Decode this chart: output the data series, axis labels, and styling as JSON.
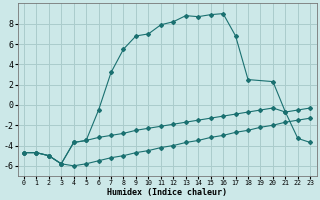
{
  "xlabel": "Humidex (Indice chaleur)",
  "bg_color": "#cce8e8",
  "grid_color": "#aacccc",
  "line_color": "#1a7070",
  "xlim": [
    -0.5,
    23.5
  ],
  "ylim": [
    -7.0,
    10.0
  ],
  "xticks": [
    0,
    1,
    2,
    3,
    4,
    5,
    6,
    7,
    8,
    9,
    10,
    11,
    12,
    13,
    14,
    15,
    16,
    17,
    18,
    19,
    20,
    21,
    22,
    23
  ],
  "yticks": [
    -6,
    -4,
    -2,
    0,
    2,
    4,
    6,
    8
  ],
  "s1_x": [
    0,
    1,
    2,
    3,
    4,
    5,
    6,
    7,
    8,
    9,
    10,
    11,
    12,
    13,
    14,
    15,
    16,
    17,
    18,
    20,
    21,
    22,
    23
  ],
  "s1_y": [
    -4.7,
    -4.7,
    -5.0,
    -5.8,
    -3.7,
    -3.5,
    -0.5,
    3.2,
    5.5,
    6.8,
    7.0,
    7.9,
    8.2,
    8.8,
    8.7,
    8.9,
    9.0,
    6.8,
    2.5,
    2.3,
    -0.7,
    -3.3,
    -3.7
  ],
  "s2_x": [
    0,
    1,
    2,
    3,
    4,
    5,
    6,
    7,
    8,
    9,
    10,
    11,
    12,
    13,
    14,
    15,
    16,
    17,
    18,
    19,
    20,
    21,
    22,
    23
  ],
  "s2_y": [
    -4.7,
    -4.7,
    -5.0,
    -5.8,
    -3.7,
    -3.5,
    -3.2,
    -3.0,
    -2.8,
    -2.5,
    -2.3,
    -2.1,
    -1.9,
    -1.7,
    -1.5,
    -1.3,
    -1.1,
    -0.9,
    -0.7,
    -0.5,
    -0.3,
    -0.7,
    -0.5,
    -0.3
  ],
  "s3_x": [
    0,
    1,
    2,
    3,
    4,
    5,
    6,
    7,
    8,
    9,
    10,
    11,
    12,
    13,
    14,
    15,
    16,
    17,
    18,
    19,
    20,
    21,
    22,
    23
  ],
  "s3_y": [
    -4.7,
    -4.7,
    -5.0,
    -5.8,
    -6.0,
    -5.8,
    -5.5,
    -5.2,
    -5.0,
    -4.7,
    -4.5,
    -4.2,
    -4.0,
    -3.7,
    -3.5,
    -3.2,
    -3.0,
    -2.7,
    -2.5,
    -2.2,
    -2.0,
    -1.7,
    -1.5,
    -1.3
  ]
}
